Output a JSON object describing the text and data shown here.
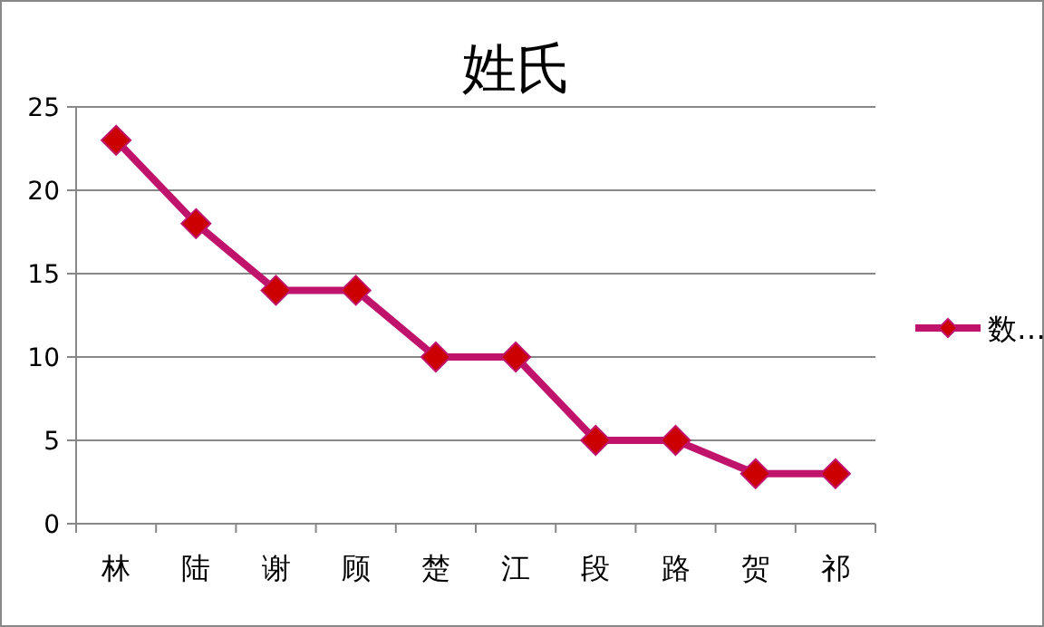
{
  "chart_data": {
    "type": "line",
    "title": "姓氏",
    "categories": [
      "林",
      "陆",
      "谢",
      "顾",
      "楚",
      "江",
      "段",
      "路",
      "贺",
      "祁"
    ],
    "series": [
      {
        "name": "数…",
        "color": "#c0146c",
        "values": [
          23,
          18,
          14,
          14,
          10,
          10,
          5,
          5,
          3,
          3
        ]
      }
    ],
    "ylim": [
      0,
      25
    ],
    "yticks": [
      0,
      5,
      10,
      15,
      20,
      25
    ],
    "grid": "y",
    "legend": "right",
    "marker": "diamond",
    "line_style": "solid"
  }
}
